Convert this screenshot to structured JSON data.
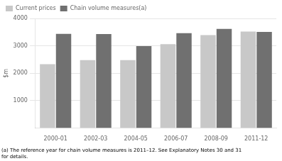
{
  "chart_data": {
    "type": "bar",
    "categories": [
      "2000-01",
      "2002-03",
      "2004-05",
      "2006-07",
      "2008-09",
      "2011-12"
    ],
    "series": [
      {
        "name": "Current prices",
        "color": "#c8c8c8",
        "values": [
          2330,
          2480,
          2480,
          3060,
          3390,
          3520
        ]
      },
      {
        "name": "Chain volume measures(a)",
        "color": "#707070",
        "values": [
          3440,
          3430,
          2990,
          3460,
          3620,
          3510
        ]
      }
    ],
    "ylabel": "$m",
    "annotation": "(a) The reference year for chain volume measures is 2011–12. See Explanatory Notes 30 and 31\nfor details.",
    "ylim": [
      0,
      4000
    ],
    "yticks": [
      1000,
      2000,
      3000,
      4000
    ],
    "grid": true,
    "legend": "upper left"
  }
}
